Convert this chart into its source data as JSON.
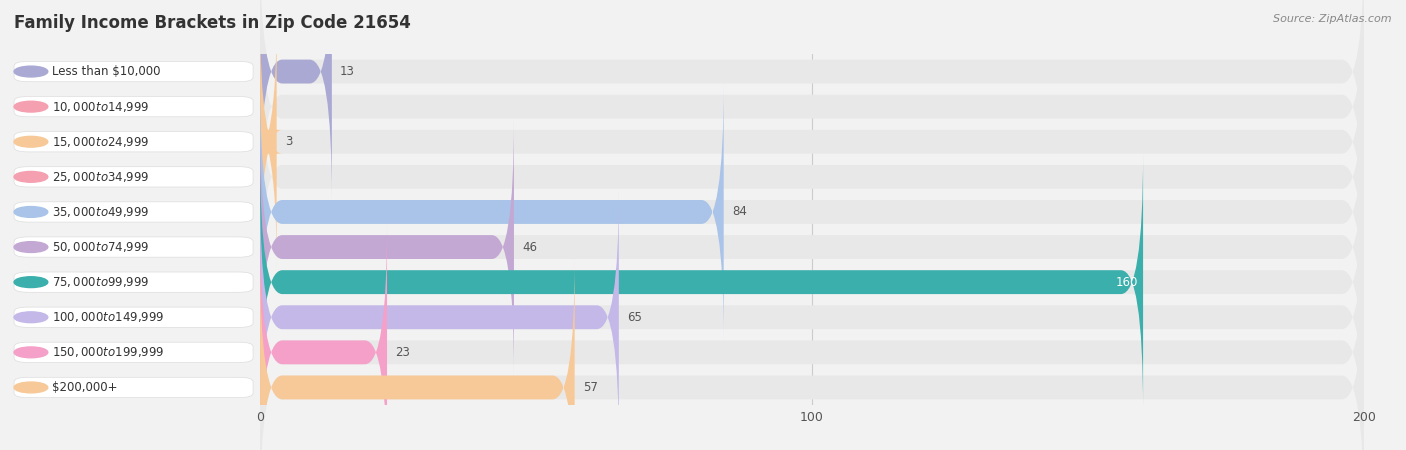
{
  "title": "Family Income Brackets in Zip Code 21654",
  "source": "Source: ZipAtlas.com",
  "categories": [
    "Less than $10,000",
    "$10,000 to $14,999",
    "$15,000 to $24,999",
    "$25,000 to $34,999",
    "$35,000 to $49,999",
    "$50,000 to $74,999",
    "$75,000 to $99,999",
    "$100,000 to $149,999",
    "$150,000 to $199,999",
    "$200,000+"
  ],
  "values": [
    13,
    0,
    3,
    0,
    84,
    46,
    160,
    65,
    23,
    57
  ],
  "bar_colors": [
    "#a9a9d4",
    "#f4a0b0",
    "#f7c998",
    "#f4a0b0",
    "#a9c4e8",
    "#c4a8d4",
    "#3aafab",
    "#c4b8e8",
    "#f4a0c8",
    "#f7c998"
  ],
  "background_color": "#f2f2f2",
  "bar_bg_color": "#e8e8e8",
  "label_bg_color": "#ffffff",
  "xlim": [
    0,
    200
  ],
  "xticks": [
    0,
    100,
    200
  ],
  "title_fontsize": 12,
  "label_fontsize": 8.5,
  "value_fontsize": 8.5,
  "bar_height": 0.68
}
